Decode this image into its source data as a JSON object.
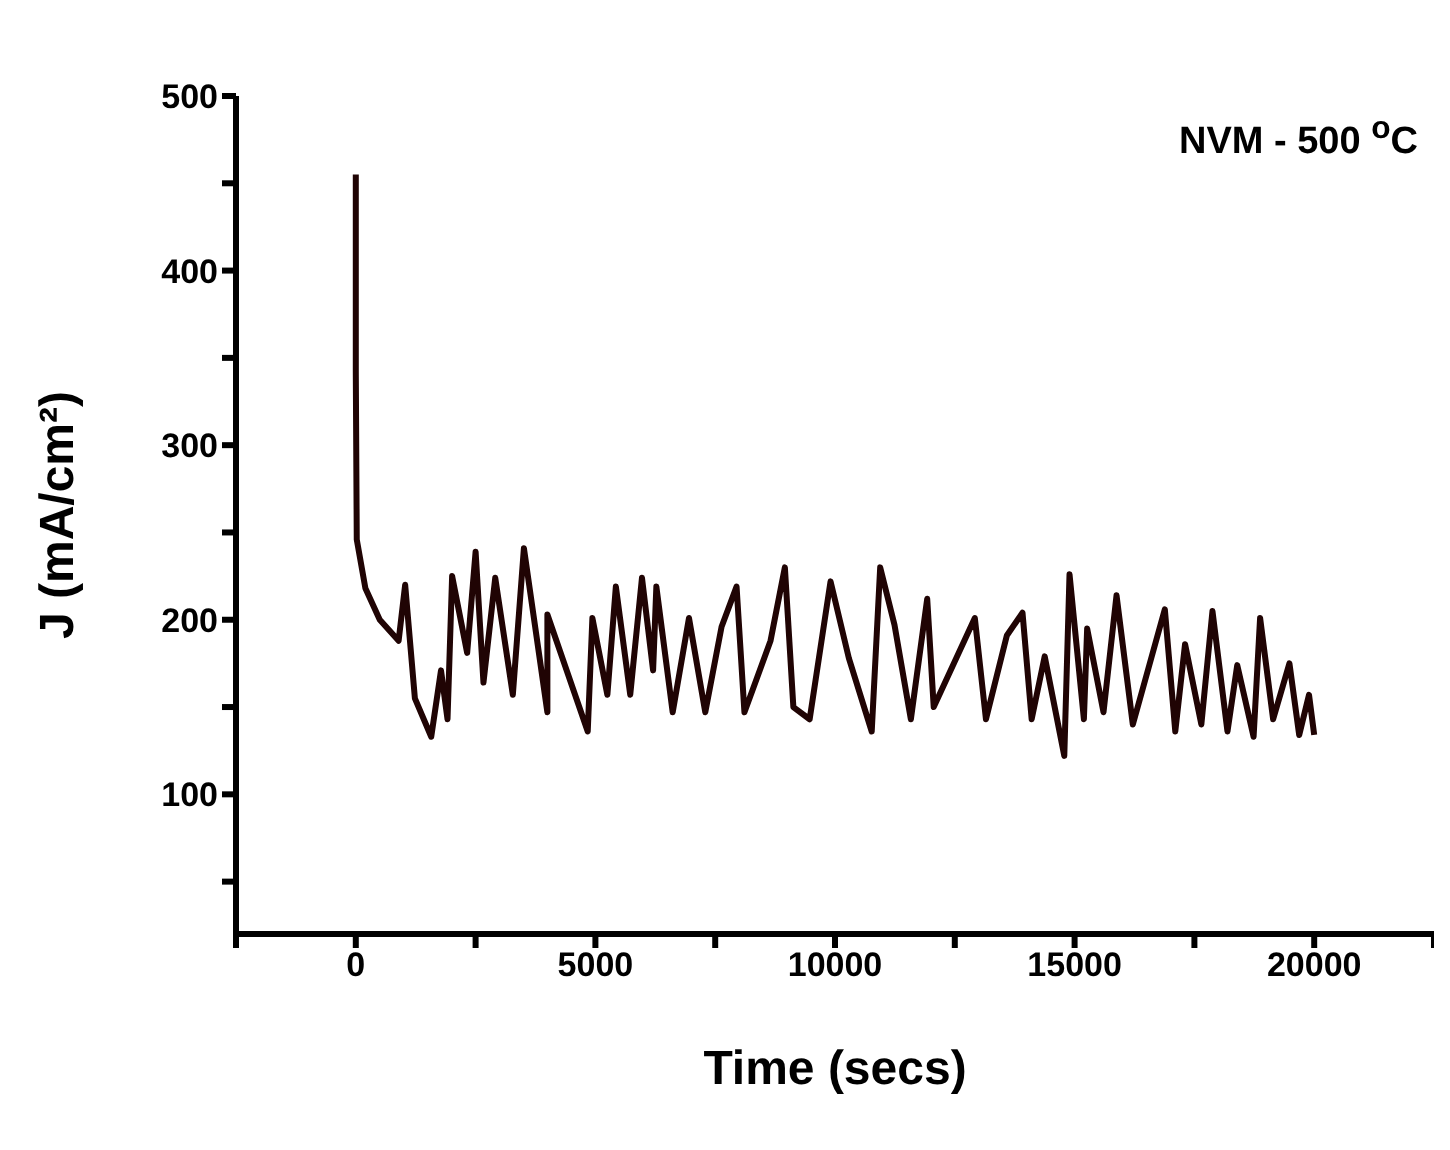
{
  "chart_data": {
    "type": "line",
    "xlabel": "Time (secs)",
    "ylabel": "J (mA/cm²)",
    "annotations": [
      "NVM - 500 $^{o}$C"
    ],
    "xlim": [
      -2500,
      22500
    ],
    "xticks": [
      {
        "value": -2500,
        "label": null
      },
      0,
      {
        "value": 2500,
        "label": null
      },
      5000,
      {
        "value": 7500,
        "label": null
      },
      10000,
      {
        "value": 12500,
        "label": null
      },
      15000,
      {
        "value": 17500,
        "label": null
      },
      20000,
      {
        "value": 22500,
        "label": null
      }
    ],
    "ylim": [
      20,
      500
    ],
    "yticks": [
      {
        "value": 50,
        "label": null
      },
      100,
      {
        "value": 150,
        "label": null
      },
      200,
      {
        "value": 250,
        "label": null
      },
      300,
      {
        "value": 350,
        "label": null
      },
      400,
      {
        "value": 450,
        "label": null
      },
      500
    ],
    "grid": false,
    "marker": "none",
    "line_style": "solid",
    "series": [
      {
        "color": "#200404",
        "x": [
          0,
          0,
          20,
          200,
          500,
          894,
          1030,
          1233,
          1574,
          1778,
          1914,
          2010,
          2324,
          2500,
          2664,
          2910,
          3277,
          3508,
          3998,
          3998,
          4840,
          4937,
          5250,
          5427,
          5727,
          5972,
          6204,
          6272,
          6613,
          6953,
          7293,
          7633,
          7946,
          8110,
          8655,
          8954,
          9131,
          9471,
          9907,
          10289,
          10766,
          10943,
          11242,
          11583,
          11924,
          12060,
          12918,
          13150,
          13586,
          13913,
          14104,
          14376,
          14785,
          14894,
          15194,
          15262,
          15603,
          15875,
          16215,
          16883,
          17101,
          17305,
          17645,
          17877,
          18190,
          18394,
          18735,
          18871,
          19143,
          19483,
          19687,
          19892,
          20000
        ],
        "values": [
          455,
          342,
          246,
          218,
          200,
          188,
          220,
          155,
          133,
          171,
          143,
          225,
          181,
          239,
          164,
          224,
          157,
          241,
          147,
          203,
          136,
          201,
          157,
          219,
          157,
          224,
          171,
          219,
          147,
          201,
          147,
          196,
          219,
          147,
          188,
          230,
          150,
          143,
          222,
          178,
          136,
          230,
          197,
          143,
          212,
          150,
          201,
          143,
          191,
          204,
          143,
          179,
          122,
          226,
          143,
          195,
          147,
          214,
          140,
          206,
          136,
          186,
          140,
          205,
          136,
          174,
          133,
          201,
          143,
          175,
          134,
          157,
          134
        ]
      }
    ]
  }
}
